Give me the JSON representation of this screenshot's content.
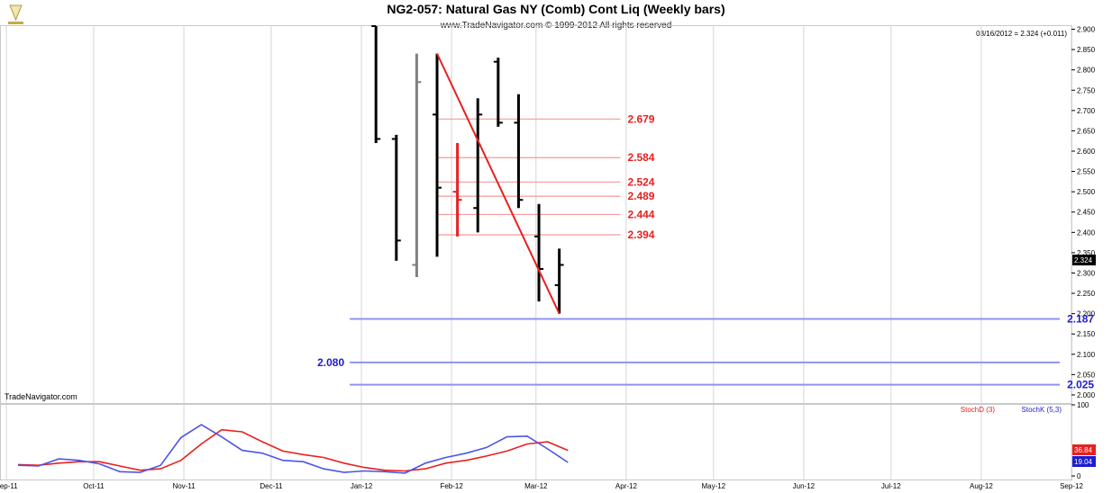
{
  "chart_data": {
    "type": "ohlc",
    "title": "NG2-057:  Natural Gas NY (Comb) Cont Liq  (Weekly bars)",
    "subtitle": "www.TradeNavigator.com © 1999-2012 All rights reserved",
    "readout": "03/16/2012 = 2.324 (+0.011)",
    "watermark": "TradeNavigator.com",
    "last_price_label": "2.324",
    "price_axis": {
      "ylim": [
        1.98,
        2.91
      ],
      "ticks": [
        "2.000",
        "2.050",
        "2.100",
        "2.150",
        "2.200",
        "2.250",
        "2.300",
        "2.350",
        "2.400",
        "2.450",
        "2.500",
        "2.550",
        "2.600",
        "2.650",
        "2.700",
        "2.750",
        "2.800",
        "2.850",
        "2.900"
      ]
    },
    "time_axis": {
      "start": "2011-09-05",
      "end": "2012-09-01",
      "ticks": [
        {
          "label": "Sep-11",
          "date": "2011-09-01"
        },
        {
          "label": "Oct-11",
          "date": "2011-10-01"
        },
        {
          "label": "Nov-11",
          "date": "2011-11-01"
        },
        {
          "label": "Dec-11",
          "date": "2011-12-01"
        },
        {
          "label": "Jan-12",
          "date": "2012-01-01"
        },
        {
          "label": "Feb-12",
          "date": "2012-02-01"
        },
        {
          "label": "Mar-12",
          "date": "2012-03-01"
        },
        {
          "label": "Apr-12",
          "date": "2012-04-01"
        },
        {
          "label": "May-12",
          "date": "2012-05-01"
        },
        {
          "label": "Jun-12",
          "date": "2012-06-01"
        },
        {
          "label": "Jul-12",
          "date": "2012-07-01"
        },
        {
          "label": "Aug-12",
          "date": "2012-08-01"
        },
        {
          "label": "Sep-12",
          "date": "2012-09-01"
        }
      ]
    },
    "bars": [
      {
        "date": "2012-01-06",
        "open": 2.99,
        "high": 2.99,
        "low": 2.62,
        "close": 2.63,
        "color": "#000000"
      },
      {
        "date": "2012-01-13",
        "open": 2.63,
        "high": 2.64,
        "low": 2.33,
        "close": 2.38,
        "color": "#000000"
      },
      {
        "date": "2012-01-20",
        "open": 2.32,
        "high": 2.84,
        "low": 2.29,
        "close": 2.77,
        "color": "#808080"
      },
      {
        "date": "2012-01-27",
        "open": 2.69,
        "high": 2.84,
        "low": 2.34,
        "close": 2.51,
        "color": "#000000"
      },
      {
        "date": "2012-02-03",
        "open": 2.5,
        "high": 2.62,
        "low": 2.39,
        "close": 2.48,
        "color": "#e8201f"
      },
      {
        "date": "2012-02-10",
        "open": 2.46,
        "high": 2.73,
        "low": 2.4,
        "close": 2.69,
        "color": "#000000"
      },
      {
        "date": "2012-02-17",
        "open": 2.82,
        "high": 2.83,
        "low": 2.66,
        "close": 2.67,
        "color": "#000000"
      },
      {
        "date": "2012-02-24",
        "open": 2.67,
        "high": 2.74,
        "low": 2.46,
        "close": 2.48,
        "color": "#000000"
      },
      {
        "date": "2012-03-02",
        "open": 2.39,
        "high": 2.47,
        "low": 2.23,
        "close": 2.31,
        "color": "#000000"
      },
      {
        "date": "2012-03-09",
        "open": 2.27,
        "high": 2.36,
        "low": 2.2,
        "close": 2.32,
        "color": "#000000"
      }
    ],
    "fib_levels": [
      {
        "value": 2.679,
        "label": "2.679"
      },
      {
        "value": 2.584,
        "label": "2.584"
      },
      {
        "value": 2.524,
        "label": "2.524"
      },
      {
        "value": 2.489,
        "label": "2.489"
      },
      {
        "value": 2.444,
        "label": "2.444"
      },
      {
        "value": 2.394,
        "label": "2.394"
      }
    ],
    "fib_range": {
      "from": "2012-01-27",
      "to": "2012-03-30"
    },
    "trendline": [
      {
        "date": "2012-01-27",
        "value": 2.84
      },
      {
        "date": "2012-03-09",
        "value": 2.2
      }
    ],
    "target_levels": [
      {
        "value": 2.187,
        "label": "2.187",
        "label_side": "right"
      },
      {
        "value": 2.08,
        "label": "2.080",
        "label_side": "left"
      },
      {
        "value": 2.025,
        "label": "2.025",
        "label_side": "right"
      }
    ],
    "target_range": {
      "from": "2011-12-28",
      "to": "2012-08-28"
    },
    "stochastic": {
      "ylim": [
        -5,
        100
      ],
      "ticks": [
        "100",
        "0"
      ],
      "legend": [
        {
          "name": "StochD (3)",
          "color": "#e8201f"
        },
        {
          "name": "StochK (5,3)",
          "color": "#1c1ccf"
        }
      ],
      "d_value_label": "36.84",
      "k_value_label": "19.04",
      "dates": [
        "2011-09-05",
        "2011-09-12",
        "2011-09-19",
        "2011-09-26",
        "2011-10-03",
        "2011-10-10",
        "2011-10-17",
        "2011-10-24",
        "2011-10-31",
        "2011-11-07",
        "2011-11-14",
        "2011-11-21",
        "2011-11-28",
        "2011-12-05",
        "2011-12-12",
        "2011-12-19",
        "2011-12-26",
        "2012-01-02",
        "2012-01-09",
        "2012-01-16",
        "2012-01-23",
        "2012-01-30",
        "2012-02-06",
        "2012-02-13",
        "2012-02-20",
        "2012-02-27",
        "2012-03-05",
        "2012-03-12"
      ],
      "stochD": [
        16,
        15,
        18,
        20,
        20,
        14,
        8,
        10,
        22,
        45,
        65,
        62,
        48,
        35,
        30,
        26,
        18,
        12,
        8,
        7,
        10,
        18,
        22,
        28,
        35,
        45,
        48,
        36
      ],
      "stochK": [
        15,
        14,
        24,
        22,
        17,
        6,
        5,
        15,
        54,
        72,
        55,
        36,
        32,
        22,
        20,
        10,
        5,
        7,
        6,
        4,
        18,
        26,
        32,
        40,
        55,
        56,
        38,
        19
      ]
    }
  }
}
